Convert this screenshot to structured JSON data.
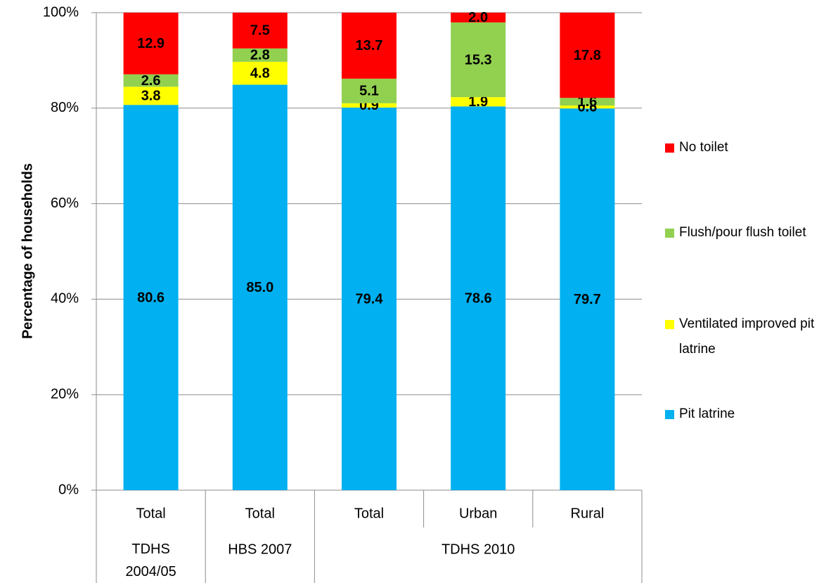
{
  "chart_data": {
    "type": "bar",
    "stacked": "percent",
    "y_label": "Percentage of households",
    "categories": [
      "Total",
      "Total",
      "Total",
      "Urban",
      "Rural"
    ],
    "category_groups": [
      {
        "label": "TDHS 2004/05",
        "span": 1
      },
      {
        "label": "HBS 2007",
        "span": 1
      },
      {
        "label": "TDHS 2010",
        "span": 3
      }
    ],
    "series": [
      {
        "name": "Pit latrine",
        "color": "#00b0f0",
        "values": [
          80.6,
          85.0,
          79.4,
          78.6,
          79.7
        ],
        "value_labels": [
          "80.6",
          "85.0",
          "79.4",
          "78.6",
          "79.7"
        ]
      },
      {
        "name": "Ventilated improved pit latrine",
        "color": "#ffff00",
        "values": [
          3.8,
          4.8,
          0.9,
          1.9,
          0.6
        ]
      },
      {
        "name": "Flush/pour flush toilet",
        "color": "#92d050",
        "values": [
          2.6,
          2.8,
          5.1,
          15.3,
          1.6
        ]
      },
      {
        "name": "No toilet",
        "color": "#ff0000",
        "values": [
          12.9,
          7.5,
          13.7,
          2.0,
          17.8
        ],
        "value_labels": [
          "12.9",
          "7.5",
          "13.7",
          "2.0",
          "17.8"
        ]
      }
    ],
    "ylim": [
      0,
      100
    ],
    "yticks": [
      {
        "value": 0,
        "label": "0%"
      },
      {
        "value": 20,
        "label": "20%"
      },
      {
        "value": 40,
        "label": "40%"
      },
      {
        "value": 60,
        "label": "60%"
      },
      {
        "value": 80,
        "label": "80%"
      },
      {
        "value": 100,
        "label": "100%"
      }
    ],
    "grid": true,
    "legend": "right"
  }
}
